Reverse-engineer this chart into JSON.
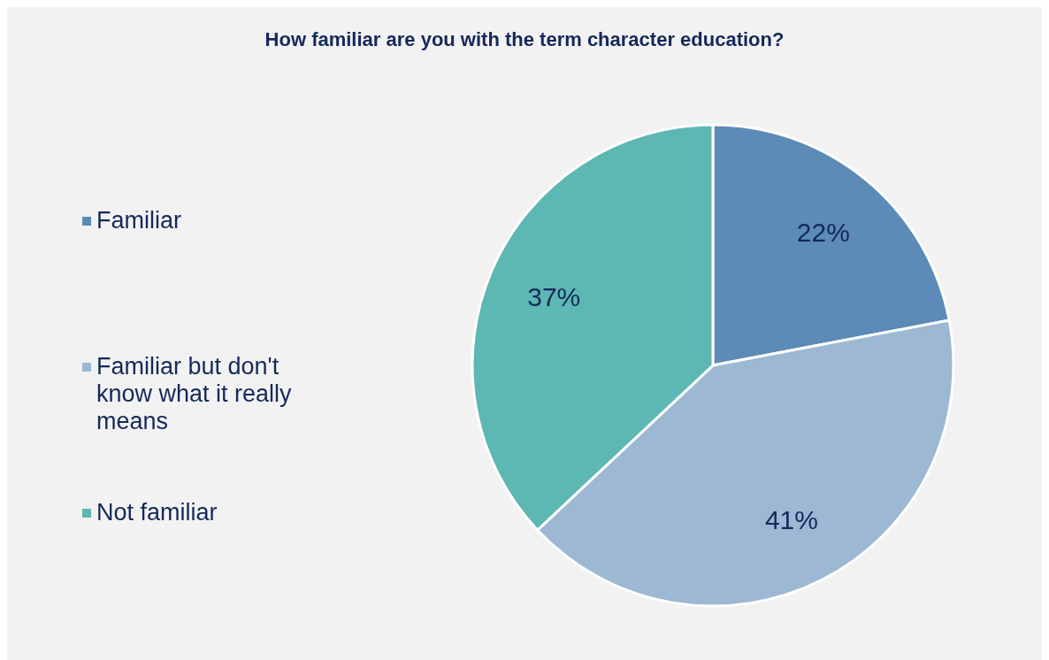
{
  "chart_data": {
    "type": "pie",
    "title": "How familiar are you with the term character education?",
    "categories": [
      "Familiar",
      "Familiar but don't know what it really means",
      "Not familiar"
    ],
    "values": [
      22,
      41,
      37
    ],
    "value_labels": [
      "22%",
      "41%",
      "37%"
    ],
    "colors": [
      "#5b8bb6",
      "#9cb8d3",
      "#5db7b3"
    ],
    "legend": "left"
  }
}
